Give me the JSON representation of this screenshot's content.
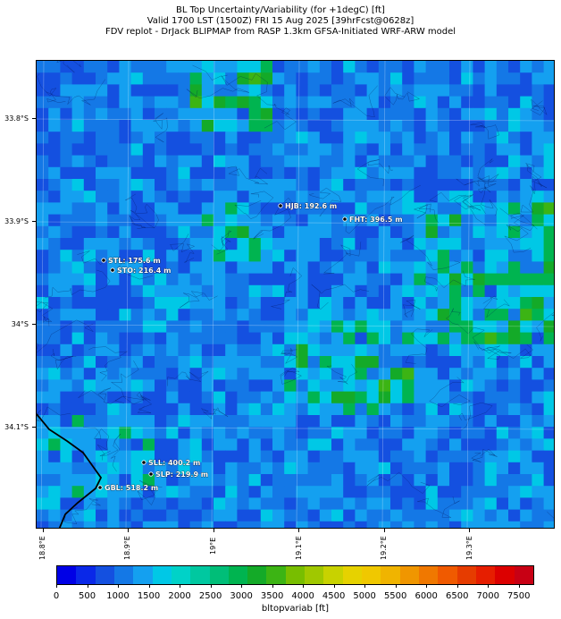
{
  "title": {
    "line1": "BL Top Uncertainty/Variability (for +1degC) [ft]",
    "line2": "Valid 1700 LST (1500Z) FRI 15 Aug 2025 [39hrFcst@0628z]",
    "line3": "FDV replot - DrJack BLIPMAP from RASP 1.3km GFSA-Initiated WRF-ARW model"
  },
  "axes": {
    "lat_labels": [
      "33.8°S",
      "33.9°S",
      "34°S",
      "34.1°S"
    ],
    "lon_labels": [
      "18.8°E",
      "18.9°E",
      "19°E",
      "19.1°E",
      "19.2°E",
      "19.3°E"
    ]
  },
  "stations": [
    {
      "id": "HJB",
      "label": "HJB: 192.6 m"
    },
    {
      "id": "FHT",
      "label": "FHT: 396.5 m"
    },
    {
      "id": "STL",
      "label": "STL: 175.6 m"
    },
    {
      "id": "STO",
      "label": "STO: 216.4 m"
    },
    {
      "id": "SLL",
      "label": "SLL: 400.2 m"
    },
    {
      "id": "SLP",
      "label": "SLP: 219.9 m"
    },
    {
      "id": "GBL",
      "label": "GBL: 518.2 m"
    }
  ],
  "colorbar": {
    "label": "bltopvariab [ft]",
    "ticks": [
      "0",
      "500",
      "1000",
      "1500",
      "2000",
      "2500",
      "3000",
      "3500",
      "4000",
      "4500",
      "5000",
      "5500",
      "6000",
      "6500",
      "7000",
      "7500"
    ],
    "colors": [
      "#0000e6",
      "#0a28e8",
      "#1450e0",
      "#1478e6",
      "#14a0f0",
      "#00c8e6",
      "#00d2c8",
      "#00c8a0",
      "#00be78",
      "#00b450",
      "#14aa28",
      "#3cb414",
      "#78be00",
      "#a0c800",
      "#c8d200",
      "#e6d200",
      "#f0c800",
      "#f0b400",
      "#f09600",
      "#f07800",
      "#f05a00",
      "#e63c00",
      "#e61e00",
      "#dc0000",
      "#c80014"
    ]
  }
}
